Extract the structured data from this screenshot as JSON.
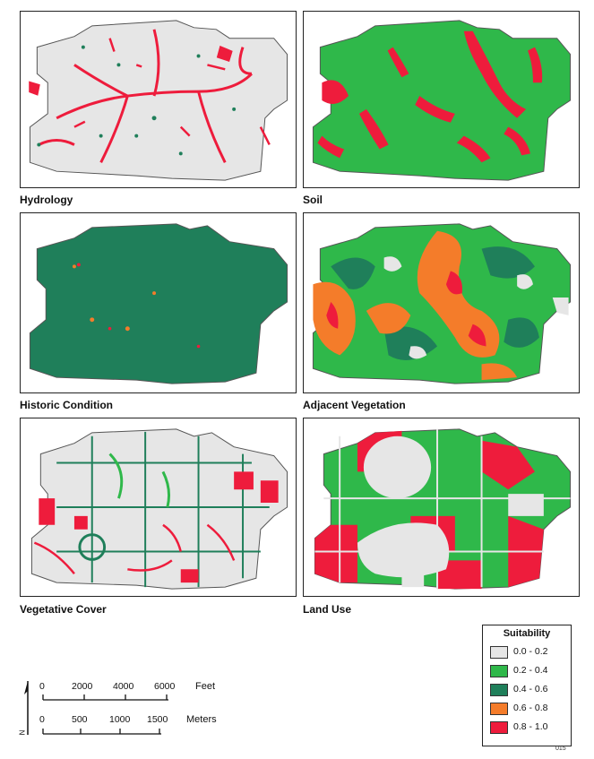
{
  "maps": [
    {
      "id": "hydrology",
      "title": "Hydrology"
    },
    {
      "id": "soil",
      "title": "Soil"
    },
    {
      "id": "historic",
      "title": "Historic Condition"
    },
    {
      "id": "adjacent",
      "title": "Adjacent Vegetation"
    },
    {
      "id": "vegetative",
      "title": "Vegetative Cover"
    },
    {
      "id": "landuse",
      "title": "Land Use"
    }
  ],
  "legend": {
    "title": "Suitability",
    "classes": [
      {
        "label": "0.0 - 0.2",
        "color": "#e6e6e6"
      },
      {
        "label": "0.2 - 0.4",
        "color": "#2fb84a"
      },
      {
        "label": "0.4 - 0.6",
        "color": "#1f7f5a"
      },
      {
        "label": "0.6 - 0.8",
        "color": "#f47c2a"
      },
      {
        "label": "0.8 - 1.0",
        "color": "#ee1c3c"
      }
    ]
  },
  "scale_bar": {
    "feet_ticks": [
      "0",
      "2000",
      "4000",
      "6000"
    ],
    "feet_unit": "Feet",
    "meter_ticks": [
      "0",
      "500",
      "1000",
      "1500"
    ],
    "meter_unit": "Meters",
    "north_label": "N"
  },
  "figure_id": "015"
}
